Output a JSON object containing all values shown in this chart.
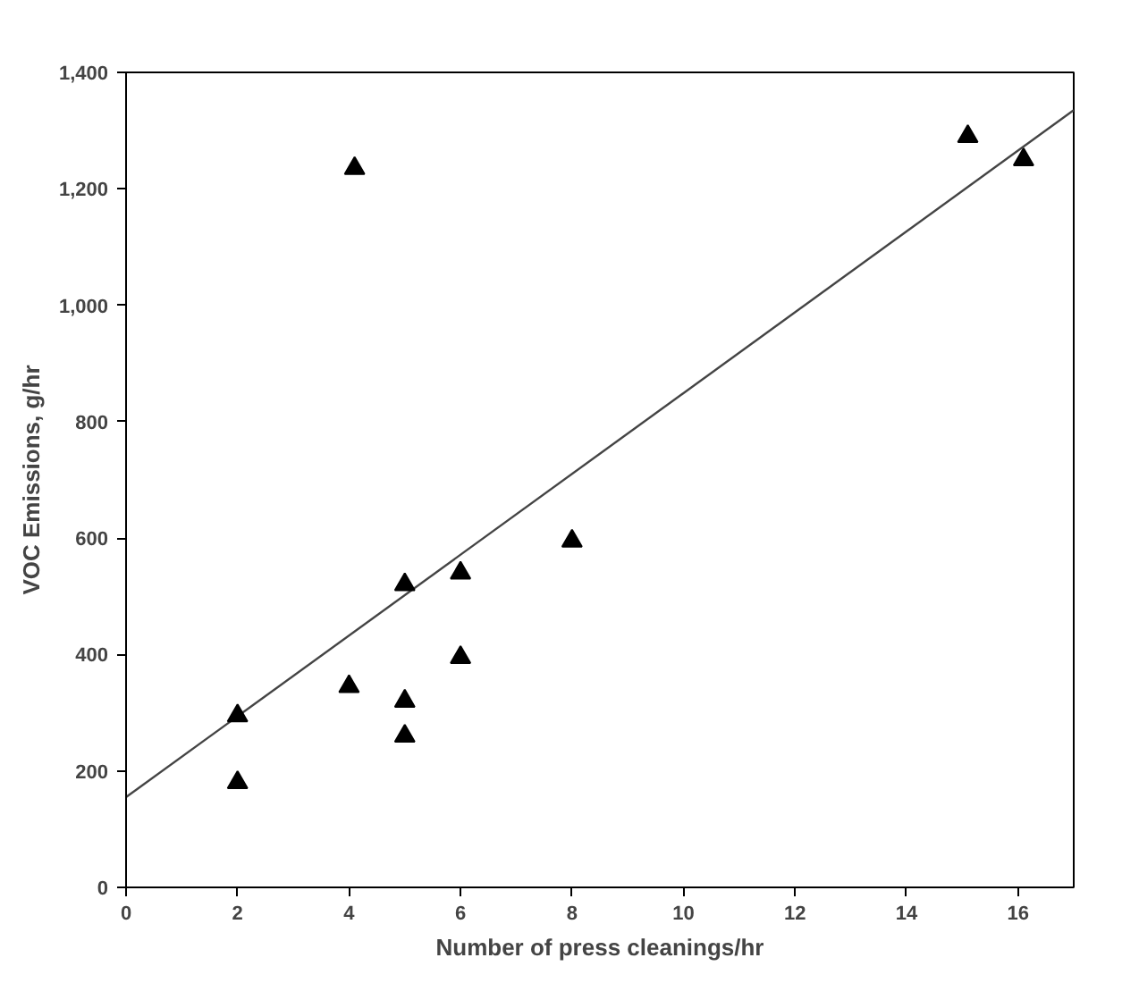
{
  "chart_data": {
    "type": "scatter",
    "xlabel": "Number of press cleanings/hr",
    "ylabel": "VOC Emissions, g/hr",
    "xlim": [
      0,
      17
    ],
    "ylim": [
      0,
      1400
    ],
    "xticks": [
      0,
      2,
      4,
      6,
      8,
      10,
      12,
      14,
      16
    ],
    "yticks": [
      0,
      200,
      400,
      600,
      800,
      {
        "value": 1000,
        "label": "1,000"
      },
      {
        "value": 1200,
        "label": "1,200"
      },
      {
        "value": 1400,
        "label": "1,400"
      }
    ],
    "grid": false,
    "marker": "triangle",
    "series": [
      {
        "color": "#000000",
        "x": [
          2,
          2,
          4,
          4.1,
          5,
          5,
          5,
          6,
          6,
          8,
          15.1,
          16.1
        ],
        "values": [
          180,
          295,
          345,
          1235,
          320,
          260,
          520,
          540,
          395,
          595,
          1290,
          1250
        ]
      },
      {
        "type": "line",
        "color": "#444444",
        "x": [
          0,
          17
        ],
        "values": [
          155,
          1335
        ],
        "marker": "none"
      }
    ]
  }
}
